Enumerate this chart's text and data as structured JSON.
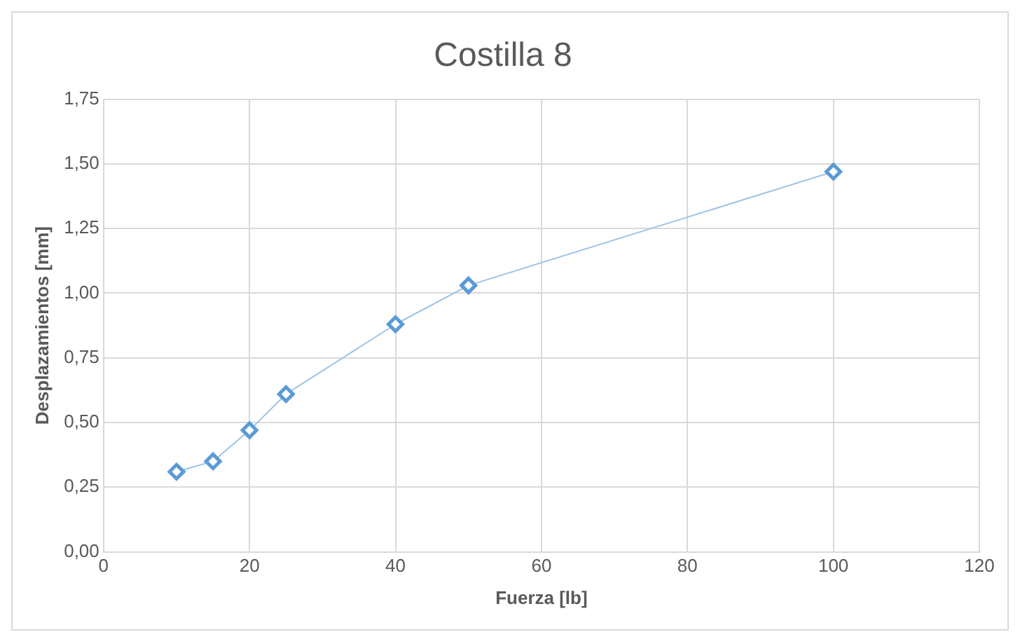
{
  "chart_data": {
    "type": "line",
    "title": "Costilla 8",
    "xlabel": "Fuerza [lb]",
    "ylabel": "Desplazamientos [mm]",
    "x": [
      10,
      15,
      20,
      25,
      40,
      50,
      100
    ],
    "series": [
      {
        "color": "#5b9bd5",
        "values": [
          0.31,
          0.35,
          0.47,
          0.61,
          0.88,
          1.03,
          1.47
        ]
      }
    ],
    "xlim": [
      0,
      120
    ],
    "xticks": [
      0,
      20,
      40,
      60,
      80,
      100,
      120
    ],
    "ylim": [
      0,
      1.75
    ],
    "yticks": [
      {
        "value": 0,
        "label": "0,00"
      },
      {
        "value": 0.25,
        "label": "0,25"
      },
      {
        "value": 0.5,
        "label": "0,50"
      },
      {
        "value": 0.75,
        "label": "0,75"
      },
      {
        "value": 1,
        "label": "1,00"
      },
      {
        "value": 1.25,
        "label": "1,25"
      },
      {
        "value": 1.5,
        "label": "1,50"
      },
      {
        "value": 1.75,
        "label": "1,75"
      }
    ],
    "grid": true,
    "marker": "diamond",
    "line_style": "solid",
    "legend": false
  }
}
